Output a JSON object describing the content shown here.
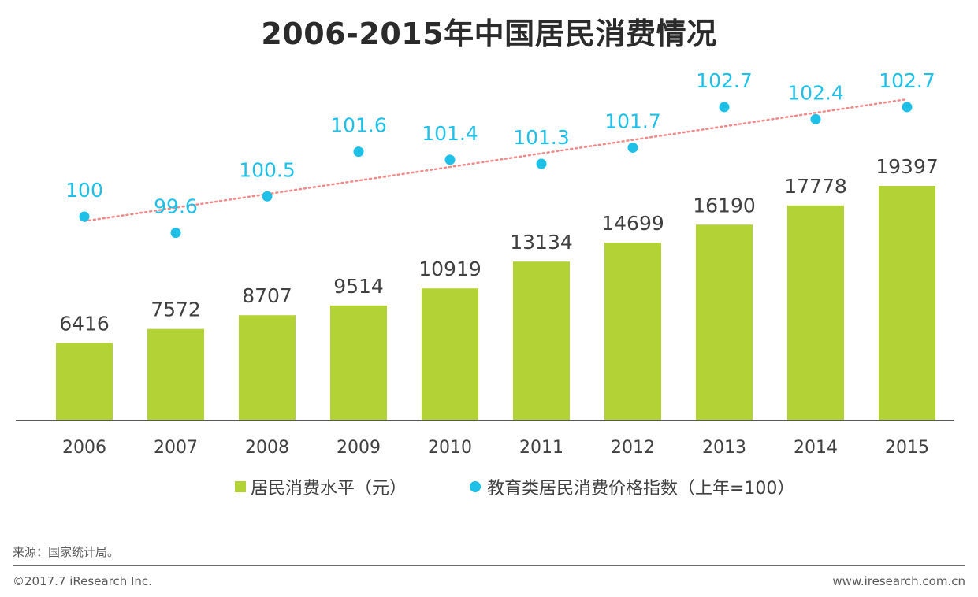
{
  "title": "2006-2015年中国居民消费情况",
  "legend": {
    "bar_label": "居民消费水平（元）",
    "dot_label": "教育类居民消费价格指数（上年=100）"
  },
  "footer": {
    "source": "来源：国家统计局。",
    "copyright": "©2017.7 iResearch Inc.",
    "site": "www.iresearch.com.cn"
  },
  "colors": {
    "bar": "#b3d235",
    "dot": "#1ec0e8",
    "trendline": "#f08a8a",
    "axis": "#595959"
  },
  "chart_data": {
    "type": "bar",
    "categories": [
      "2006",
      "2007",
      "2008",
      "2009",
      "2010",
      "2011",
      "2012",
      "2013",
      "2014",
      "2015"
    ],
    "series": [
      {
        "name": "居民消费水平（元）",
        "type": "bar",
        "values": [
          6416,
          7572,
          8707,
          9514,
          10919,
          13134,
          14699,
          16190,
          17778,
          19397
        ]
      },
      {
        "name": "教育类居民消费价格指数（上年=100）",
        "type": "scatter",
        "trendline": "linear",
        "values": [
          100,
          99.6,
          100.5,
          101.6,
          101.4,
          101.3,
          101.7,
          102.7,
          102.4,
          102.7
        ]
      }
    ],
    "grid": false,
    "legend_position": "bottom"
  }
}
